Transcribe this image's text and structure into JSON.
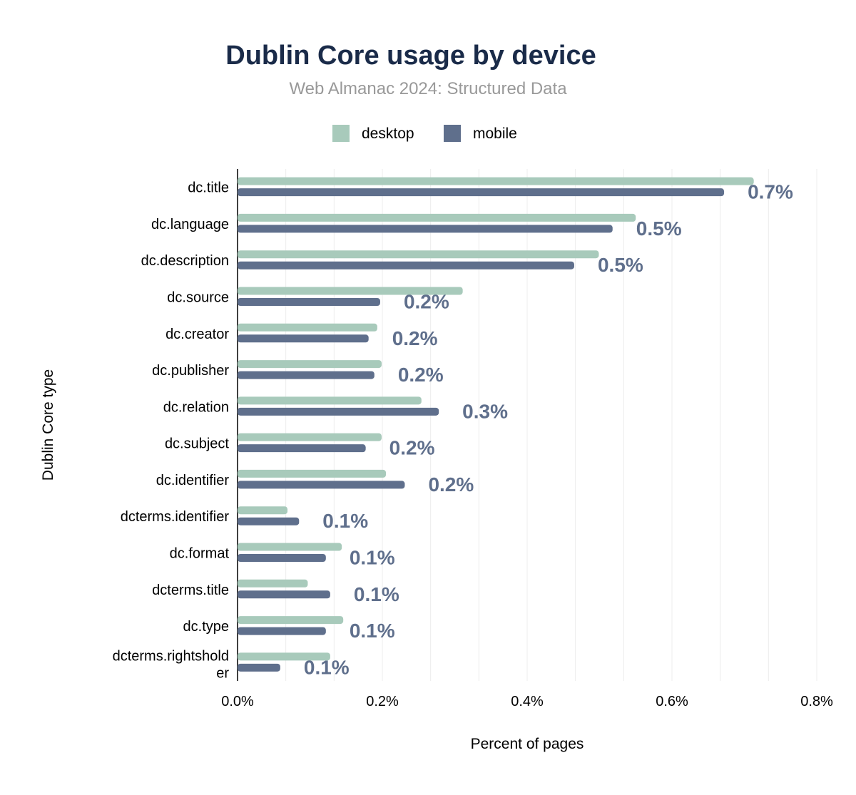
{
  "chart_data": {
    "type": "bar",
    "orientation": "horizontal",
    "title": "Dublin Core usage by device",
    "subtitle": "Web Almanac 2024: Structured Data",
    "xlabel": "Percent of pages",
    "ylabel": "Dublin Core type",
    "xlim": [
      0,
      0.8
    ],
    "x_ticks": [
      "0.0%",
      "0.2%",
      "0.4%",
      "0.6%",
      "0.8%"
    ],
    "grid": true,
    "legend_position": "top",
    "categories": [
      "dc.title",
      "dc.language",
      "dc.description",
      "dc.source",
      "dc.creator",
      "dc.publisher",
      "dc.relation",
      "dc.subject",
      "dc.identifier",
      "dcterms.identifier",
      "dc.format",
      "dcterms.title",
      "dc.type",
      "dcterms.rightsholder"
    ],
    "series": [
      {
        "name": "desktop",
        "color": "#a8cabb",
        "values": [
          0.713,
          0.55,
          0.499,
          0.311,
          0.193,
          0.199,
          0.254,
          0.199,
          0.205,
          0.069,
          0.144,
          0.097,
          0.146,
          0.128
        ]
      },
      {
        "name": "mobile",
        "color": "#5f6f8c",
        "values": [
          0.672,
          0.518,
          0.465,
          0.197,
          0.181,
          0.189,
          0.278,
          0.177,
          0.231,
          0.085,
          0.122,
          0.128,
          0.122,
          0.059
        ]
      }
    ],
    "data_labels": [
      "0.7%",
      "0.5%",
      "0.5%",
      "0.2%",
      "0.2%",
      "0.2%",
      "0.3%",
      "0.2%",
      "0.2%",
      "0.1%",
      "0.1%",
      "0.1%",
      "0.1%",
      "0.1%"
    ]
  },
  "colors": {
    "title": "#1a2b49",
    "subtitle": "#999999",
    "label": "#5f6f8c"
  }
}
